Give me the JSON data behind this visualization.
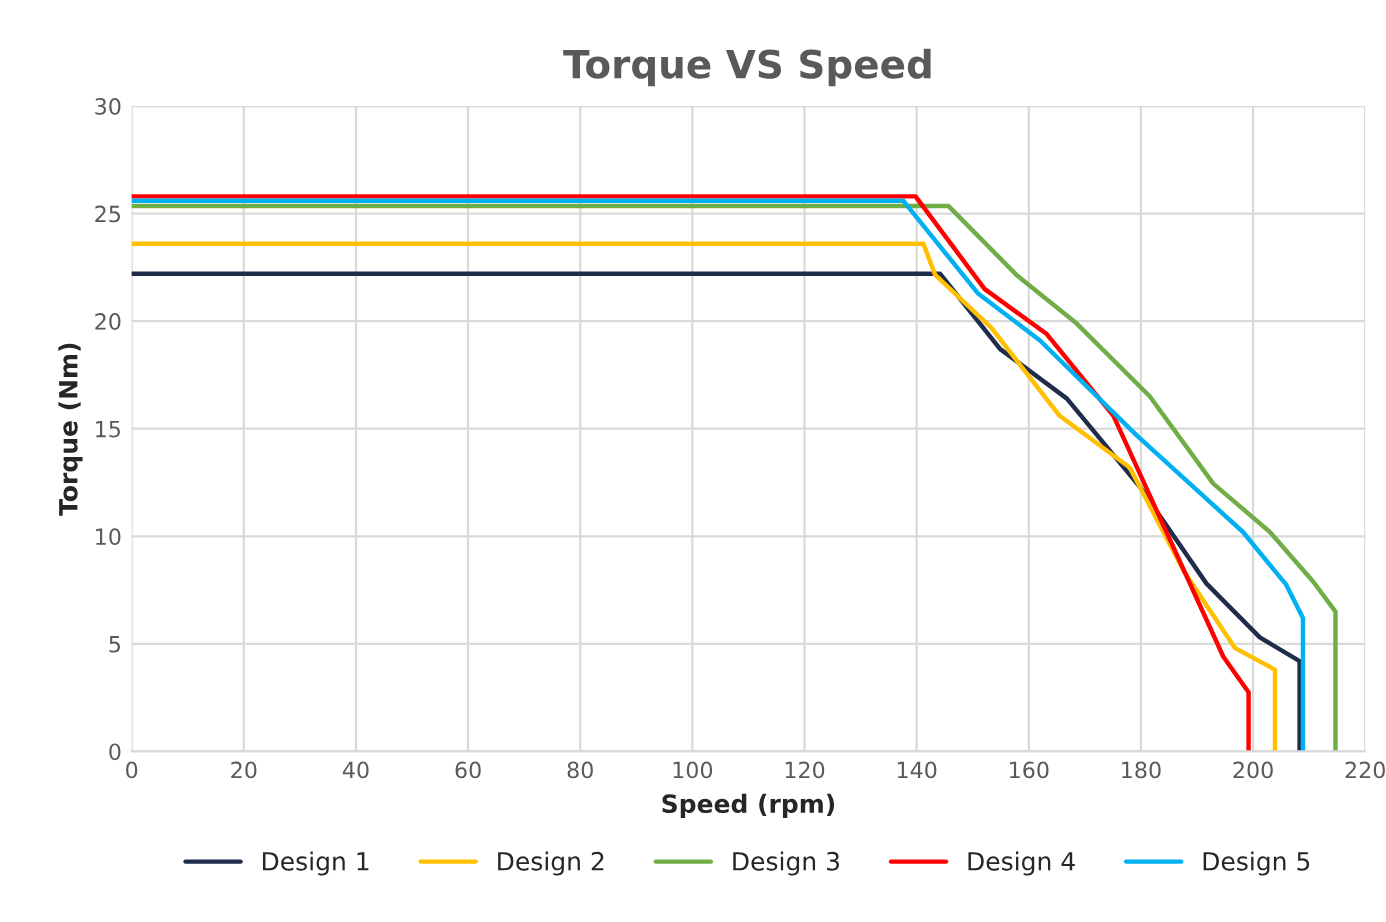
{
  "chart_data": {
    "type": "line",
    "title": "Torque VS Speed",
    "xlabel": "Speed (rpm)",
    "ylabel": "Torque (Nm)",
    "xlim": [
      0,
      220
    ],
    "xticks": [
      0,
      20,
      40,
      60,
      80,
      100,
      120,
      140,
      160,
      180,
      200,
      220
    ],
    "ylim": [
      0,
      30
    ],
    "yticks": [
      0,
      5,
      10,
      15,
      20,
      25,
      30
    ],
    "grid": true,
    "legend": "bottom",
    "marker": "none",
    "line_style": "solid",
    "series": [
      {
        "name": "Design 1",
        "color": "#1f2d4a",
        "x": [
          0,
          144.2,
          154.9,
          166.8,
          179.8,
          191.7,
          201.2,
          208.3,
          208.3
        ],
        "values": [
          22.2,
          22.2,
          18.7,
          16.4,
          12.3,
          7.8,
          5.3,
          4.2,
          0
        ]
      },
      {
        "name": "Design 2",
        "color": "#ffc000",
        "x": [
          0,
          141.2,
          143.3,
          153.3,
          165.5,
          178.0,
          187.6,
          196.8,
          203.9,
          203.9
        ],
        "values": [
          23.6,
          23.6,
          22.15,
          19.7,
          15.6,
          13.2,
          8.4,
          4.8,
          3.8,
          0
        ]
      },
      {
        "name": "Design 3",
        "color": "#70ad47",
        "x": [
          0,
          145.7,
          157.8,
          168.5,
          181.6,
          192.9,
          203.0,
          210.7,
          214.7,
          214.7
        ],
        "values": [
          25.35,
          25.35,
          22.15,
          19.9,
          16.5,
          12.45,
          10.2,
          7.9,
          6.5,
          0
        ]
      },
      {
        "name": "Design 4",
        "color": "#ff0000",
        "x": [
          0,
          139.8,
          152.1,
          163.2,
          175.1,
          194.7,
          199.2,
          199.2
        ],
        "values": [
          25.8,
          25.8,
          21.5,
          19.4,
          15.6,
          4.4,
          2.75,
          0
        ]
      },
      {
        "name": "Design 5",
        "color": "#00b0f0",
        "x": [
          0,
          137.6,
          150.9,
          162.0,
          179.2,
          198.2,
          205.9,
          208.9,
          208.9
        ],
        "values": [
          25.6,
          25.6,
          21.3,
          19.1,
          14.7,
          10.2,
          7.75,
          6.2,
          0
        ]
      }
    ]
  }
}
